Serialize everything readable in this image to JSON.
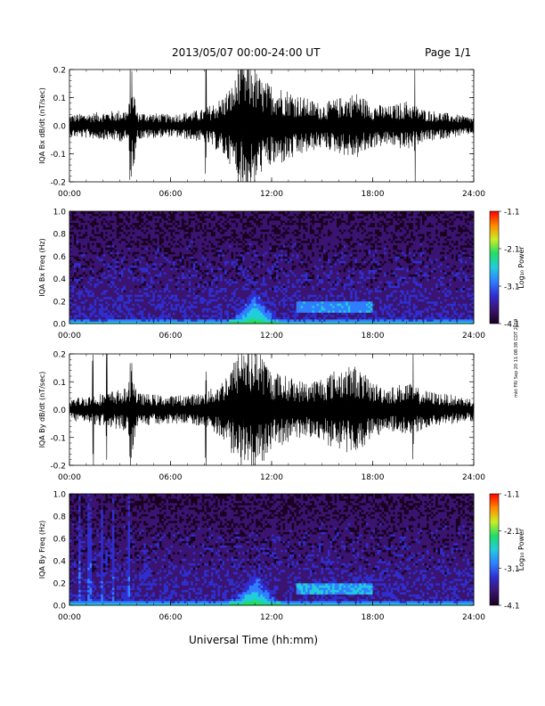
{
  "header": {
    "date_range": "2013/05/07  00:00-24:00 UT",
    "page": "Page 1/1"
  },
  "footer": {
    "xlabel": "Universal Time (hh:mm)"
  },
  "side_stamp": "mkt FRI Sep 20 11:08:38 CDT 2019",
  "colors": {
    "spectrogram_scale": [
      "#1a001f",
      "#3a1470",
      "#2f2fd0",
      "#2f7fff",
      "#22ccdd",
      "#22dd66",
      "#ccee22",
      "#ff8800",
      "#ff0000"
    ],
    "trace": "#000000"
  },
  "chart_data": [
    {
      "type": "line",
      "ylabel": "IQA Bx dB/dt (nT/sec)",
      "ylim": [
        -0.2,
        0.2
      ],
      "yticks": [
        "-0.2",
        "-0.1",
        "0.0",
        "0.1",
        "0.2"
      ],
      "xticks": [
        "00:00",
        "06:00",
        "12:00",
        "18:00",
        "24:00"
      ],
      "xlim_hours": [
        0,
        24
      ],
      "envelope": {
        "x_hours": [
          0,
          2,
          3.5,
          3.7,
          4,
          6,
          8,
          9,
          9.7,
          10.2,
          10.8,
          11.5,
          12,
          13,
          14,
          15,
          16,
          17,
          18,
          19,
          20,
          21,
          22,
          23,
          24
        ],
        "amplitude": [
          0.04,
          0.05,
          0.06,
          0.2,
          0.05,
          0.04,
          0.06,
          0.1,
          0.15,
          0.22,
          0.22,
          0.16,
          0.15,
          0.13,
          0.1,
          0.08,
          0.1,
          0.12,
          0.08,
          0.07,
          0.09,
          0.06,
          0.05,
          0.04,
          0.03
        ]
      },
      "spikes_hours": [
        3.6,
        8.1,
        10.0,
        10.3,
        10.6,
        11.0,
        20.5
      ]
    },
    {
      "type": "heatmap",
      "ylabel": "IQA Bx Freq (Hz)",
      "ylim": [
        0.0,
        1.0
      ],
      "yticks": [
        "0.0",
        "0.2",
        "0.4",
        "0.6",
        "0.8",
        "1.0"
      ],
      "xticks": [
        "00:00",
        "06:00",
        "12:00",
        "18:00",
        "24:00"
      ],
      "xlim_hours": [
        0,
        24
      ],
      "colorbar": {
        "label": "Log₁₀ Power",
        "ticks": [
          "-1.1",
          "-2.1",
          "-3.1",
          "-4.1"
        ],
        "range": [
          -4.1,
          -1.1
        ]
      },
      "features": [
        {
          "label": "low-frequency band",
          "hours": [
            0,
            24
          ],
          "freq_max_hz": 0.05,
          "log_power": -2.4
        },
        {
          "label": "storm enhancement",
          "hours": [
            9.5,
            12.5
          ],
          "freq_max_hz": 0.35,
          "log_power": -2.2
        },
        {
          "label": "Pc1 band",
          "hours": [
            13.5,
            18.0
          ],
          "freq_hz": [
            0.1,
            0.2
          ],
          "log_power": -2.9
        }
      ]
    },
    {
      "type": "line",
      "ylabel": "IQA By dB/dt (nT/sec)",
      "ylim": [
        -0.2,
        0.2
      ],
      "yticks": [
        "-0.2",
        "-0.1",
        "0.0",
        "0.1",
        "0.2"
      ],
      "xticks": [
        "00:00",
        "06:00",
        "12:00",
        "18:00",
        "24:00"
      ],
      "xlim_hours": [
        0,
        24
      ],
      "envelope": {
        "x_hours": [
          0,
          2,
          3.5,
          3.7,
          4,
          6,
          8,
          9,
          9.7,
          10.2,
          10.8,
          11.5,
          12,
          13,
          14,
          15,
          16,
          17,
          18,
          19,
          20,
          21,
          22,
          23,
          24
        ],
        "amplitude": [
          0.04,
          0.06,
          0.08,
          0.2,
          0.06,
          0.05,
          0.06,
          0.1,
          0.17,
          0.22,
          0.22,
          0.2,
          0.14,
          0.12,
          0.1,
          0.12,
          0.15,
          0.16,
          0.1,
          0.08,
          0.1,
          0.07,
          0.06,
          0.05,
          0.04
        ]
      },
      "spikes_hours": [
        1.4,
        2.2,
        3.6,
        8.1,
        10.2,
        10.6,
        11.1,
        20.4
      ]
    },
    {
      "type": "heatmap",
      "ylabel": "IQA By Freq (Hz)",
      "ylim": [
        0.0,
        1.0
      ],
      "yticks": [
        "0.0",
        "0.2",
        "0.4",
        "0.6",
        "0.8",
        "1.0"
      ],
      "xticks": [
        "00:00",
        "06:00",
        "12:00",
        "18:00",
        "24:00"
      ],
      "xlim_hours": [
        0,
        24
      ],
      "colorbar": {
        "label": "Log₁₀ Power",
        "ticks": [
          "-1.1",
          "-2.1",
          "-3.1",
          "-4.1"
        ],
        "range": [
          -4.1,
          -1.1
        ]
      },
      "features": [
        {
          "label": "low-frequency band",
          "hours": [
            0,
            24
          ],
          "freq_max_hz": 0.05,
          "log_power": -2.3
        },
        {
          "label": "broadband bursts",
          "hours_list": [
            0.6,
            1.2,
            1.9,
            2.6,
            3.5
          ],
          "log_power": -3.1
        },
        {
          "label": "storm enhancement",
          "hours": [
            9.5,
            12.5
          ],
          "freq_max_hz": 0.35,
          "log_power": -2.2
        },
        {
          "label": "Pc1 band",
          "hours": [
            13.5,
            18.0
          ],
          "freq_hz": [
            0.1,
            0.2
          ],
          "log_power": -2.8
        }
      ]
    }
  ]
}
